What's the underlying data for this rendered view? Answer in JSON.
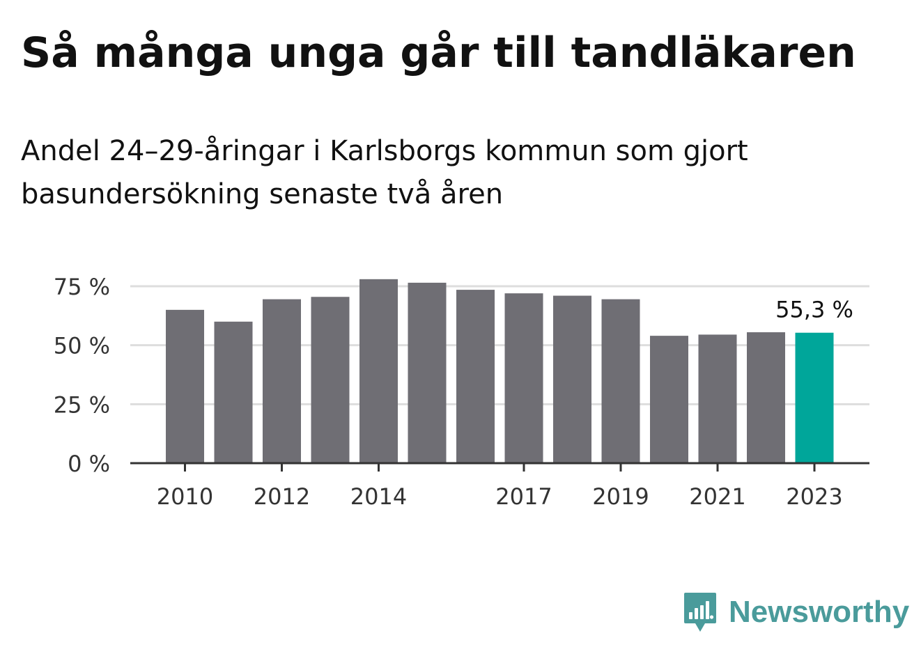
{
  "header": {
    "title": "Så många unga går till tandläkaren",
    "subtitle": "Andel 24–29-åringar i Karlsborgs kommun som gjort basundersökning senaste två åren"
  },
  "chart_data": {
    "type": "bar",
    "categories": [
      "2010",
      "2011",
      "2012",
      "2013",
      "2014",
      "2015",
      "2016",
      "2017",
      "2018",
      "2019",
      "2020",
      "2021",
      "2022",
      "2023"
    ],
    "values": [
      65,
      60,
      69.5,
      70.5,
      78,
      76.5,
      73.5,
      72,
      71,
      69.5,
      54,
      54.5,
      55.5,
      55.3
    ],
    "x_tick_labels": [
      "2010",
      "2012",
      "2014",
      "2017",
      "2019",
      "2021",
      "2023"
    ],
    "y_ticks": [
      0,
      25,
      50,
      75
    ],
    "y_tick_labels": [
      "0 %",
      "25 %",
      "50 %",
      "75 %"
    ],
    "ylim": [
      0,
      75
    ],
    "grid": true,
    "highlight": {
      "category": "2023",
      "label": "55,3 %"
    },
    "colors": {
      "bar": "#6f6e74",
      "highlight": "#00a69a",
      "grid": "#dddddd",
      "axis": "#333333"
    },
    "xlabel": "",
    "ylabel": ""
  },
  "brand": {
    "name": "Newsworthy",
    "icon": "newsworthy-logo-icon",
    "color": "#4a9b9b"
  }
}
